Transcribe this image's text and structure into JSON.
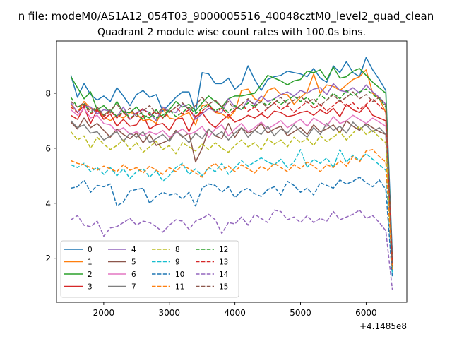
{
  "figure": {
    "suptitle": "n file: modeM0/AS1A12_054T03_9000005516_40048cztM0_level2_quad_clean"
  },
  "chart_data": {
    "type": "line",
    "title": "Quadrant 2 module wise count rates with 100.0s bins.",
    "xlabel": "",
    "ylabel": "",
    "x_offset_label": "+4.1485e8",
    "xlim": [
      1280,
      6620
    ],
    "ylim": [
      0.4,
      9.9
    ],
    "xticks": [
      2000,
      3000,
      4000,
      5000,
      6000
    ],
    "xtick_labels": [
      "2000",
      "3000",
      "4000",
      "5000",
      "6000"
    ],
    "yticks": [
      2,
      4,
      6,
      8
    ],
    "ytick_labels": [
      "2",
      "4",
      "6",
      "8"
    ],
    "grid": false,
    "legend_position": "lower-left",
    "legend_columns": 4,
    "x": [
      1500,
      1600,
      1700,
      1800,
      1900,
      2000,
      2100,
      2200,
      2300,
      2400,
      2500,
      2600,
      2700,
      2800,
      2900,
      3000,
      3100,
      3200,
      3300,
      3400,
      3500,
      3600,
      3700,
      3800,
      3900,
      4000,
      4100,
      4200,
      4300,
      4400,
      4500,
      4600,
      4700,
      4800,
      4900,
      5000,
      5100,
      5200,
      5300,
      5400,
      5500,
      5600,
      5700,
      5800,
      5900,
      6000,
      6100,
      6200,
      6300,
      6400
    ],
    "series": [
      {
        "name": "0",
        "color": "#1f77b4",
        "dash": "solid",
        "values": [
          8.65,
          7.85,
          8.35,
          7.95,
          7.75,
          7.9,
          7.7,
          8.2,
          7.9,
          7.55,
          7.95,
          8.1,
          7.85,
          7.95,
          7.35,
          7.6,
          7.85,
          8.05,
          8.05,
          7.3,
          8.75,
          8.7,
          8.35,
          8.35,
          8.55,
          8.15,
          8.35,
          9.0,
          8.5,
          8.1,
          8.5,
          8.6,
          8.65,
          8.8,
          8.75,
          8.7,
          8.6,
          8.9,
          8.55,
          8.4,
          9.0,
          8.75,
          9.15,
          8.75,
          8.6,
          9.3,
          8.85,
          8.5,
          8.1,
          2.1
        ]
      },
      {
        "name": "1",
        "color": "#ff7f0e",
        "dash": "solid",
        "values": [
          7.6,
          7.3,
          7.7,
          7.45,
          7.4,
          7.15,
          7.0,
          7.2,
          7.1,
          7.3,
          7.25,
          7.0,
          7.05,
          6.9,
          7.45,
          7.1,
          7.05,
          7.2,
          7.3,
          6.85,
          7.55,
          7.6,
          7.3,
          7.25,
          7.1,
          7.35,
          8.1,
          8.15,
          7.8,
          7.7,
          8.1,
          8.2,
          7.95,
          7.95,
          7.6,
          7.85,
          8.05,
          8.7,
          8.0,
          8.3,
          8.25,
          8.1,
          8.3,
          8.5,
          8.6,
          8.85,
          8.0,
          7.8,
          7.3,
          1.6
        ]
      },
      {
        "name": "2",
        "color": "#2ca02c",
        "dash": "solid",
        "values": [
          8.6,
          8.2,
          7.8,
          8.05,
          7.4,
          7.55,
          7.3,
          7.7,
          7.3,
          7.3,
          7.5,
          7.2,
          7.1,
          7.4,
          7.1,
          7.4,
          7.7,
          7.5,
          7.6,
          7.35,
          7.65,
          7.9,
          7.7,
          7.5,
          7.8,
          7.9,
          7.9,
          7.95,
          8.0,
          8.3,
          8.65,
          8.55,
          8.45,
          8.3,
          8.45,
          8.5,
          8.8,
          8.75,
          8.85,
          8.5,
          8.95,
          8.55,
          8.6,
          8.8,
          8.9,
          8.65,
          8.4,
          8.2,
          8.0,
          1.6
        ]
      },
      {
        "name": "3",
        "color": "#d62728",
        "dash": "solid",
        "values": [
          7.2,
          7.05,
          7.5,
          6.9,
          7.4,
          7.05,
          7.25,
          6.8,
          7.05,
          6.8,
          6.85,
          7.2,
          6.7,
          6.85,
          6.9,
          6.65,
          7.05,
          7.1,
          6.6,
          7.15,
          7.3,
          6.95,
          6.75,
          7.0,
          7.2,
          6.95,
          7.05,
          7.2,
          7.1,
          7.25,
          7.1,
          7.35,
          7.3,
          7.15,
          7.2,
          7.3,
          7.35,
          7.2,
          7.4,
          7.25,
          7.45,
          7.15,
          7.6,
          7.4,
          7.3,
          7.55,
          7.2,
          7.1,
          7.0,
          1.9
        ]
      },
      {
        "name": "4",
        "color": "#9467bd",
        "dash": "solid",
        "values": [
          7.65,
          7.3,
          7.55,
          7.5,
          7.25,
          7.4,
          7.35,
          7.15,
          7.5,
          7.05,
          7.3,
          7.4,
          7.3,
          7.0,
          7.5,
          7.35,
          7.3,
          7.6,
          7.45,
          7.05,
          7.25,
          7.45,
          7.35,
          7.3,
          7.8,
          7.5,
          7.4,
          7.75,
          7.6,
          7.9,
          7.7,
          7.8,
          7.95,
          8.05,
          7.9,
          8.1,
          8.0,
          8.15,
          8.2,
          7.95,
          8.35,
          8.1,
          8.05,
          8.2,
          8.0,
          8.3,
          8.05,
          7.85,
          7.6,
          1.8
        ]
      },
      {
        "name": "5",
        "color": "#8c564b",
        "dash": "solid",
        "values": [
          6.95,
          6.7,
          7.1,
          6.75,
          6.9,
          6.65,
          6.4,
          6.7,
          6.5,
          6.35,
          6.55,
          6.2,
          6.5,
          6.1,
          6.2,
          6.3,
          6.65,
          6.4,
          6.55,
          5.5,
          6.0,
          6.7,
          6.45,
          6.35,
          6.9,
          6.4,
          6.75,
          6.55,
          6.65,
          6.9,
          6.55,
          6.7,
          6.8,
          6.45,
          6.6,
          6.75,
          6.5,
          6.85,
          6.6,
          6.7,
          6.85,
          6.55,
          7.0,
          6.8,
          6.65,
          6.9,
          6.75,
          6.6,
          6.5,
          1.7
        ]
      },
      {
        "name": "6",
        "color": "#e377c2",
        "dash": "solid",
        "values": [
          7.4,
          7.2,
          7.45,
          7.1,
          7.2,
          6.9,
          6.85,
          6.6,
          6.75,
          6.5,
          6.6,
          6.45,
          6.6,
          6.5,
          6.65,
          6.4,
          6.55,
          6.7,
          6.5,
          6.6,
          6.8,
          6.4,
          6.7,
          6.85,
          6.45,
          6.7,
          6.9,
          6.6,
          6.75,
          6.95,
          6.7,
          6.85,
          7.0,
          6.75,
          6.9,
          7.05,
          6.8,
          7.1,
          6.95,
          6.8,
          7.15,
          6.9,
          7.0,
          7.2,
          7.05,
          6.9,
          7.1,
          6.95,
          6.8,
          1.9
        ]
      },
      {
        "name": "7",
        "color": "#7f7f7f",
        "dash": "solid",
        "values": [
          7.0,
          6.75,
          6.85,
          6.55,
          6.6,
          6.3,
          6.45,
          6.6,
          6.25,
          6.55,
          6.4,
          6.6,
          6.2,
          6.35,
          6.5,
          6.25,
          6.6,
          6.45,
          6.2,
          6.55,
          6.35,
          6.7,
          6.45,
          6.6,
          6.3,
          6.55,
          6.75,
          6.4,
          6.65,
          6.5,
          6.8,
          6.45,
          6.7,
          6.55,
          6.85,
          6.6,
          6.4,
          6.75,
          6.5,
          6.9,
          6.65,
          6.8,
          6.55,
          6.95,
          6.7,
          6.85,
          6.6,
          6.75,
          6.5,
          1.8
        ]
      },
      {
        "name": "8",
        "color": "#bcbd22",
        "dash": "dashed",
        "values": [
          6.6,
          6.3,
          6.45,
          6.0,
          6.4,
          6.15,
          5.95,
          6.1,
          6.3,
          5.95,
          6.2,
          5.85,
          6.05,
          6.25,
          5.95,
          6.1,
          5.8,
          6.2,
          6.05,
          5.9,
          6.15,
          5.95,
          6.2,
          6.0,
          5.85,
          6.1,
          6.3,
          6.05,
          6.2,
          5.95,
          6.35,
          6.15,
          6.3,
          6.05,
          6.4,
          6.2,
          6.35,
          6.1,
          6.45,
          6.25,
          6.4,
          6.6,
          6.3,
          6.55,
          6.8,
          6.5,
          6.65,
          6.4,
          6.2,
          1.5
        ]
      },
      {
        "name": "9",
        "color": "#17becf",
        "dash": "dashed",
        "values": [
          5.4,
          5.3,
          5.45,
          5.15,
          5.3,
          5.05,
          5.3,
          5.0,
          5.25,
          4.9,
          5.15,
          5.25,
          4.95,
          5.2,
          4.8,
          5.0,
          5.3,
          5.45,
          5.05,
          5.25,
          5.0,
          5.3,
          5.15,
          5.45,
          5.05,
          5.3,
          5.55,
          5.35,
          5.5,
          5.65,
          5.5,
          5.4,
          5.6,
          5.3,
          5.5,
          5.95,
          5.3,
          5.6,
          5.45,
          5.65,
          5.3,
          5.95,
          5.5,
          5.75,
          5.55,
          5.8,
          5.6,
          5.4,
          5.2,
          1.4
        ]
      },
      {
        "name": "10",
        "color": "#1f77b4",
        "dash": "dashed",
        "values": [
          4.55,
          4.6,
          4.85,
          4.4,
          4.65,
          4.6,
          4.7,
          3.9,
          4.05,
          4.45,
          4.5,
          4.55,
          4.0,
          4.25,
          4.4,
          4.3,
          4.35,
          4.15,
          4.4,
          3.9,
          4.55,
          4.7,
          4.65,
          4.4,
          4.6,
          4.2,
          4.45,
          4.55,
          4.35,
          4.25,
          4.5,
          4.6,
          4.3,
          4.8,
          4.65,
          4.4,
          4.55,
          4.3,
          4.75,
          4.65,
          4.55,
          4.85,
          4.7,
          4.8,
          4.95,
          4.75,
          4.6,
          4.85,
          4.5,
          1.3
        ]
      },
      {
        "name": "11",
        "color": "#ff7f0e",
        "dash": "dashed",
        "values": [
          5.55,
          5.45,
          5.4,
          5.3,
          5.2,
          5.35,
          5.25,
          5.15,
          5.4,
          5.2,
          5.3,
          5.1,
          5.35,
          5.2,
          5.05,
          5.3,
          5.15,
          5.4,
          5.25,
          5.1,
          4.95,
          5.3,
          5.45,
          5.2,
          5.35,
          5.15,
          5.4,
          5.25,
          5.1,
          5.35,
          5.2,
          5.45,
          5.3,
          5.15,
          5.4,
          5.25,
          5.5,
          5.35,
          5.15,
          5.4,
          5.3,
          5.55,
          5.35,
          5.7,
          5.5,
          5.9,
          5.95,
          5.7,
          5.5,
          1.6
        ]
      },
      {
        "name": "12",
        "color": "#2ca02c",
        "dash": "dashed",
        "values": [
          7.85,
          7.5,
          7.6,
          7.3,
          7.45,
          7.2,
          7.4,
          7.15,
          7.35,
          7.1,
          7.25,
          7.05,
          7.3,
          7.1,
          7.2,
          7.4,
          7.15,
          7.3,
          7.5,
          7.25,
          7.45,
          7.6,
          7.35,
          7.5,
          7.3,
          7.55,
          7.4,
          7.65,
          7.5,
          7.7,
          7.55,
          7.8,
          7.6,
          7.75,
          7.9,
          7.7,
          7.85,
          7.6,
          7.95,
          7.75,
          8.0,
          7.8,
          8.1,
          7.9,
          8.05,
          8.15,
          7.95,
          7.8,
          7.5,
          1.9
        ]
      },
      {
        "name": "13",
        "color": "#d62728",
        "dash": "dashed",
        "values": [
          7.5,
          7.3,
          7.55,
          7.25,
          7.4,
          7.15,
          7.35,
          7.1,
          7.3,
          7.05,
          7.25,
          7.45,
          7.2,
          7.35,
          7.1,
          7.3,
          7.5,
          7.25,
          7.4,
          7.15,
          7.35,
          7.55,
          7.3,
          7.45,
          7.2,
          7.4,
          7.6,
          7.35,
          7.5,
          7.25,
          7.45,
          7.65,
          7.4,
          7.55,
          7.3,
          7.5,
          7.7,
          7.45,
          7.6,
          7.35,
          7.55,
          7.75,
          7.5,
          7.65,
          7.4,
          7.6,
          7.8,
          7.55,
          7.3,
          1.8
        ]
      },
      {
        "name": "14",
        "color": "#9467bd",
        "dash": "dashed",
        "values": [
          3.4,
          3.55,
          3.2,
          3.15,
          3.35,
          2.8,
          3.1,
          3.15,
          3.3,
          3.45,
          3.2,
          3.35,
          3.3,
          3.15,
          2.95,
          3.2,
          3.4,
          3.35,
          3.05,
          3.35,
          3.45,
          3.6,
          3.4,
          2.9,
          3.3,
          3.25,
          3.5,
          3.2,
          3.6,
          3.45,
          3.3,
          3.75,
          3.7,
          3.4,
          3.5,
          3.3,
          3.55,
          3.3,
          3.45,
          3.35,
          3.7,
          3.4,
          3.5,
          3.6,
          3.75,
          3.45,
          3.55,
          3.3,
          3.0,
          0.85
        ]
      },
      {
        "name": "15",
        "color": "#8c564b",
        "dash": "dashed",
        "values": [
          7.7,
          7.5,
          7.65,
          7.35,
          7.5,
          7.2,
          7.4,
          7.6,
          7.3,
          7.45,
          7.15,
          7.35,
          7.55,
          7.25,
          7.45,
          7.3,
          7.5,
          7.65,
          7.4,
          7.55,
          7.85,
          7.6,
          7.75,
          7.5,
          7.7,
          7.4,
          7.6,
          7.8,
          7.55,
          7.7,
          7.45,
          7.65,
          7.85,
          7.6,
          7.75,
          7.9,
          7.65,
          7.8,
          7.55,
          7.75,
          7.95,
          7.7,
          7.85,
          8.05,
          7.8,
          7.95,
          7.7,
          7.85,
          7.55,
          1.7
        ]
      }
    ]
  }
}
